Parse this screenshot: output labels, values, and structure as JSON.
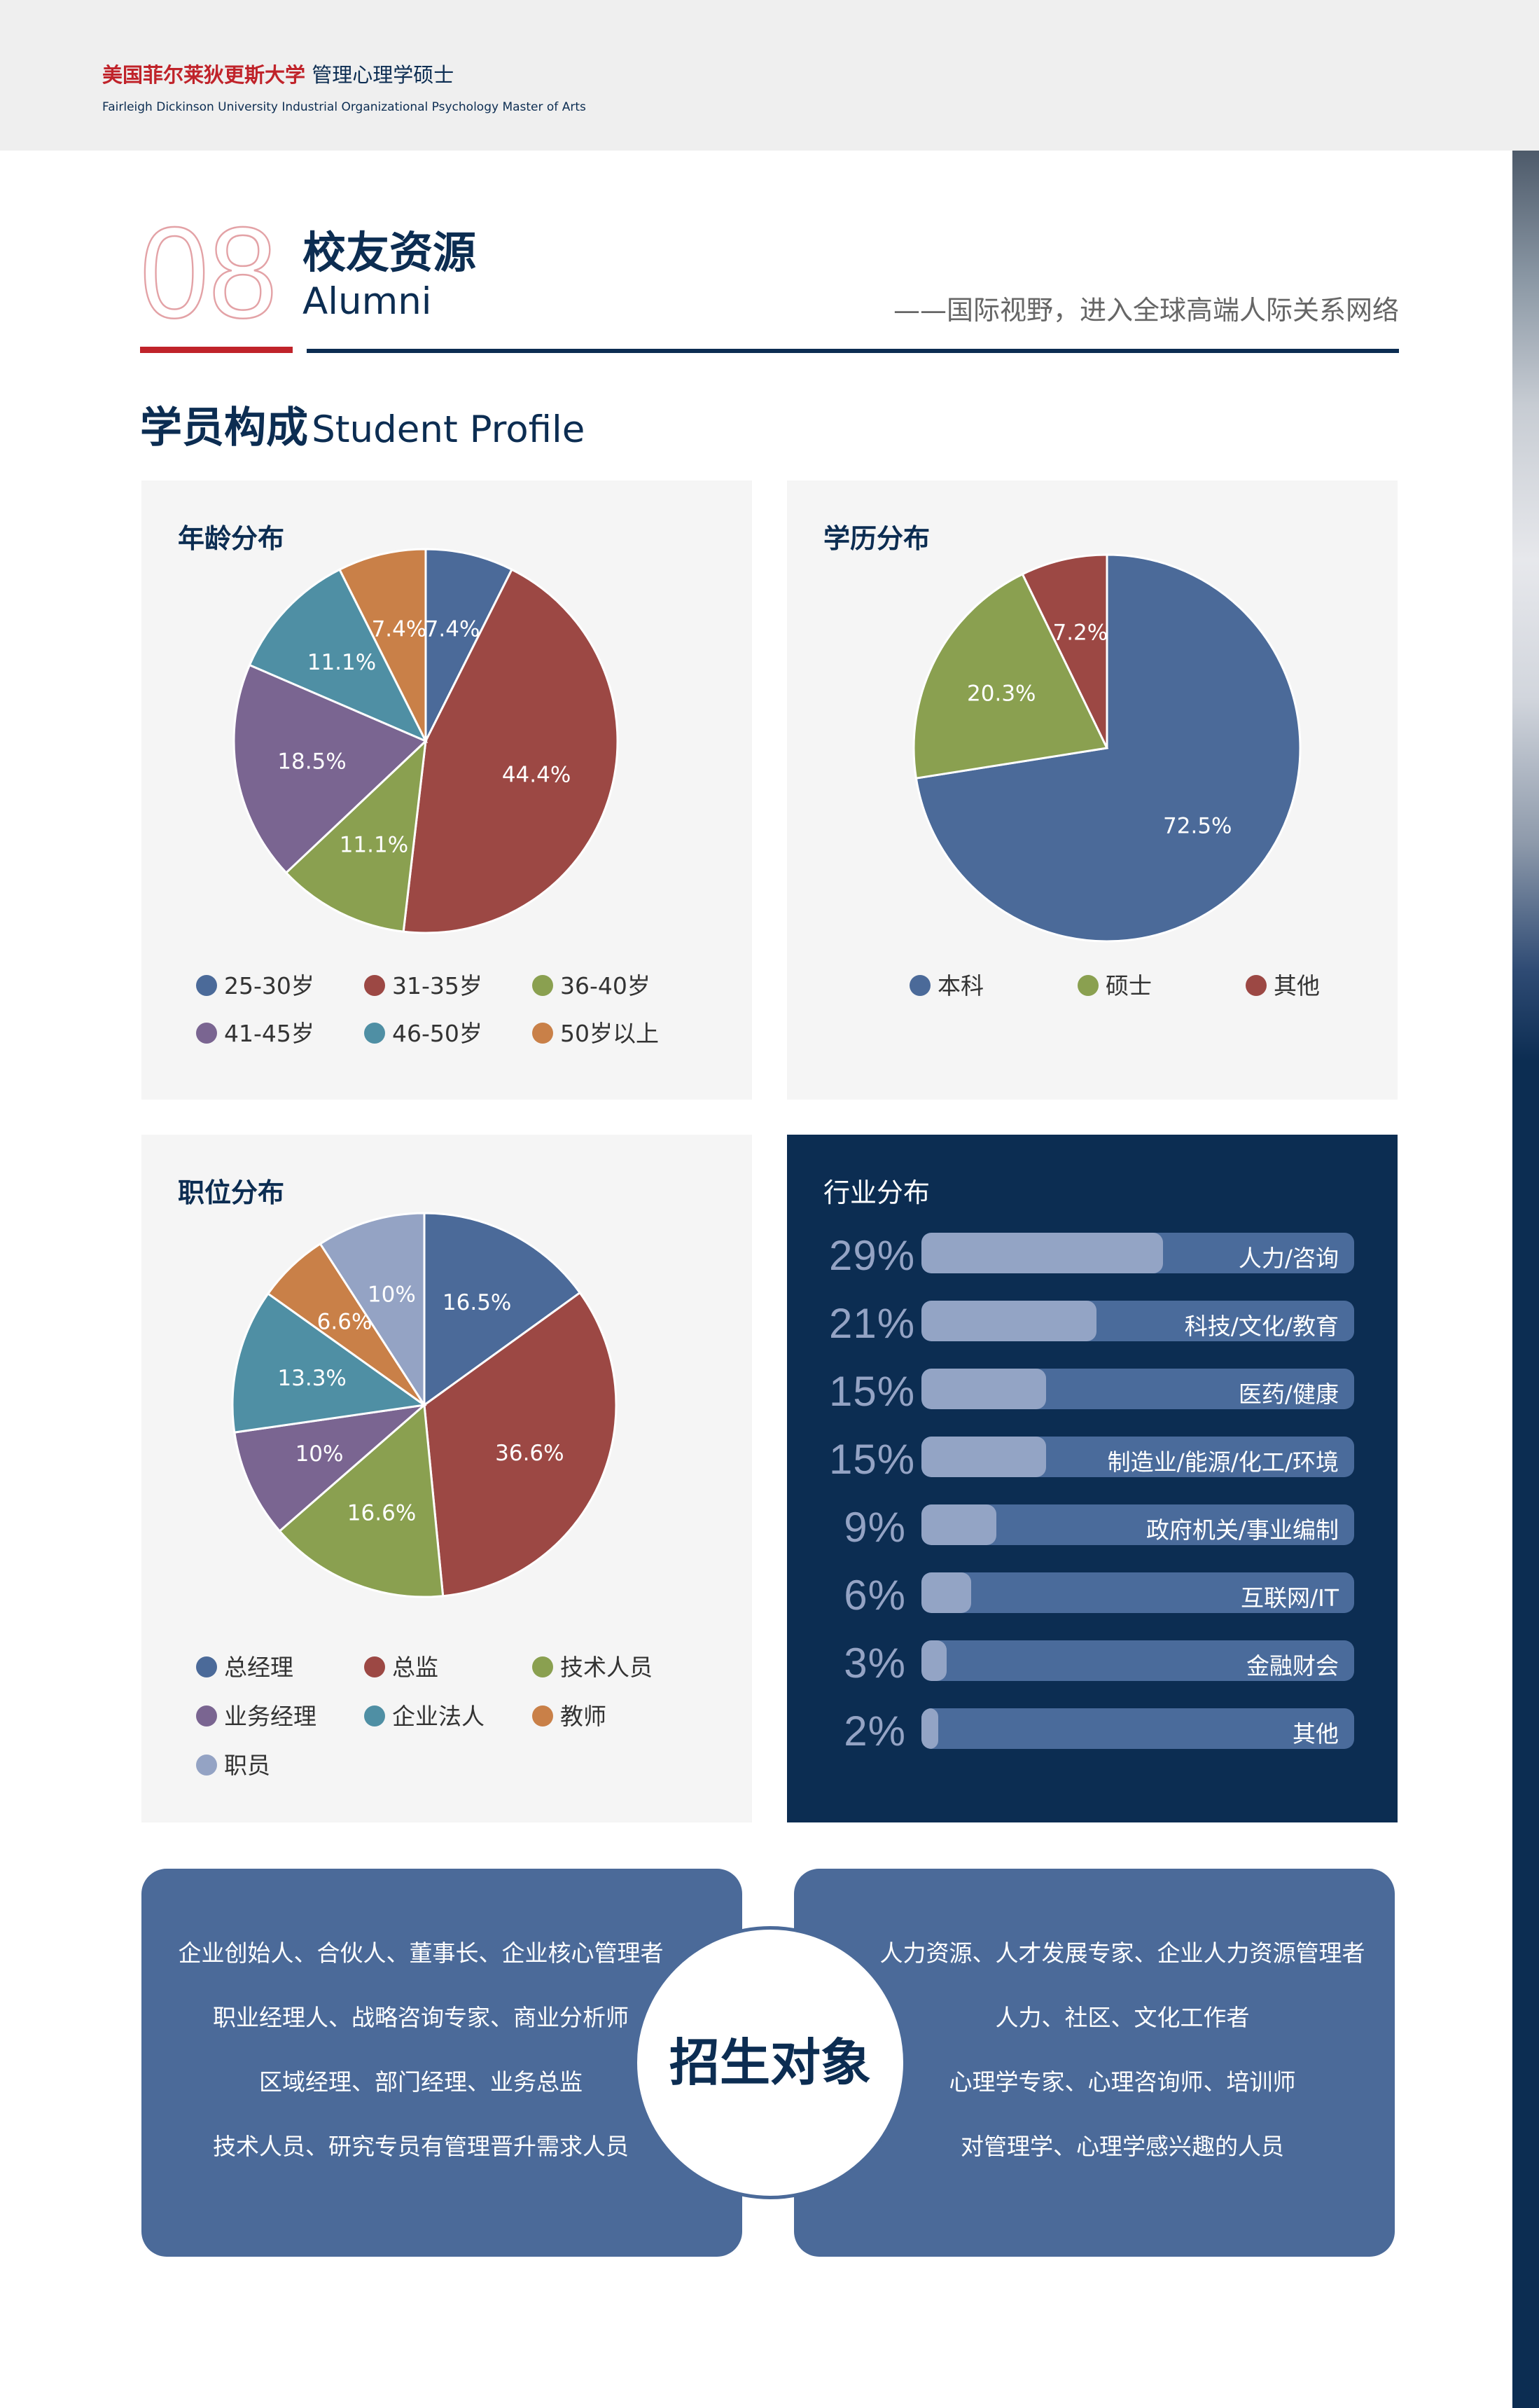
{
  "header": {
    "brand_red": "美国菲尔莱狄更斯大学",
    "brand_rest": "管理心理学硕士",
    "brand_en": "Fairleigh Dickinson University Industrial Organizational Psychology Master of Arts"
  },
  "section_header": {
    "number": "08",
    "title_cn": "校友资源",
    "title_en": "Alumni",
    "slogan": "——国际视野，进入全球高端人际关系网络"
  },
  "profile_heading": {
    "cn": "学员构成",
    "en": "Student Profile"
  },
  "colors": {
    "navy": "#0c2d52",
    "red": "#c0232a",
    "blue": "#4b6a99",
    "maroon": "#9c4844",
    "green": "#8aa050",
    "purple": "#7a6591",
    "teal": "#4f8fa4",
    "orange": "#c98048",
    "light_blue": "#94a3c4"
  },
  "chart_data": [
    {
      "type": "pie",
      "title": "年龄分布",
      "categories": [
        "25-30岁",
        "31-35岁",
        "36-40岁",
        "41-45岁",
        "46-50岁",
        "50岁以上"
      ],
      "values": [
        7.4,
        44.4,
        11.1,
        18.5,
        11.1,
        7.4
      ],
      "labels": [
        "7.4%",
        "44.4%",
        "11.1%",
        "18.5%",
        "11.1%",
        "7.4%"
      ],
      "colors": [
        "#4b6a99",
        "#9c4844",
        "#8aa050",
        "#7a6591",
        "#4f8fa4",
        "#c98048"
      ],
      "legend_position": "bottom"
    },
    {
      "type": "pie",
      "title": "学历分布",
      "categories": [
        "本科",
        "硕士",
        "其他"
      ],
      "values": [
        72.5,
        20.3,
        7.2
      ],
      "labels": [
        "72.5%",
        "20.3%",
        "7.2%"
      ],
      "colors": [
        "#4b6a99",
        "#8aa050",
        "#9c4844"
      ],
      "legend_position": "bottom"
    },
    {
      "type": "pie",
      "title": "职位分布",
      "categories": [
        "总经理",
        "总监",
        "技术人员",
        "业务经理",
        "企业法人",
        "教师",
        "职员"
      ],
      "values": [
        16.5,
        36.6,
        16.6,
        10,
        13.3,
        6.6,
        10
      ],
      "labels": [
        "16.5%",
        "36.6%",
        "16.6%",
        "10%",
        "13.3%",
        "6.6%",
        "10%"
      ],
      "colors": [
        "#4b6a99",
        "#9c4844",
        "#8aa050",
        "#7a6591",
        "#4f8fa4",
        "#c98048",
        "#94a3c4"
      ],
      "legend_position": "bottom"
    },
    {
      "type": "bar",
      "orientation": "horizontal",
      "title": "行业分布",
      "categories": [
        "人力/咨询",
        "科技/文化/教育",
        "医药/健康",
        "制造业/能源/化工/环境",
        "政府机关/事业编制",
        "互联网/IT",
        "金融财会",
        "其他"
      ],
      "values": [
        29,
        21,
        15,
        15,
        9,
        6,
        3,
        2
      ],
      "labels": [
        "29%",
        "21%",
        "15%",
        "15%",
        "9%",
        "6%",
        "3%",
        "2%"
      ]
    }
  ],
  "targets": {
    "title": "招生对象",
    "left": [
      "企业创始人、合伙人、董事长、企业核心管理者",
      "职业经理人、战略咨询专家、商业分析师",
      "区域经理、部门经理、业务总监",
      "技术人员、研究专员有管理晋升需求人员"
    ],
    "right": [
      "人力资源、人才发展专家、企业人力资源管理者",
      "人力、社区、文化工作者",
      "心理学专家、心理咨询师、培训师",
      "对管理学、心理学感兴趣的人员"
    ]
  }
}
